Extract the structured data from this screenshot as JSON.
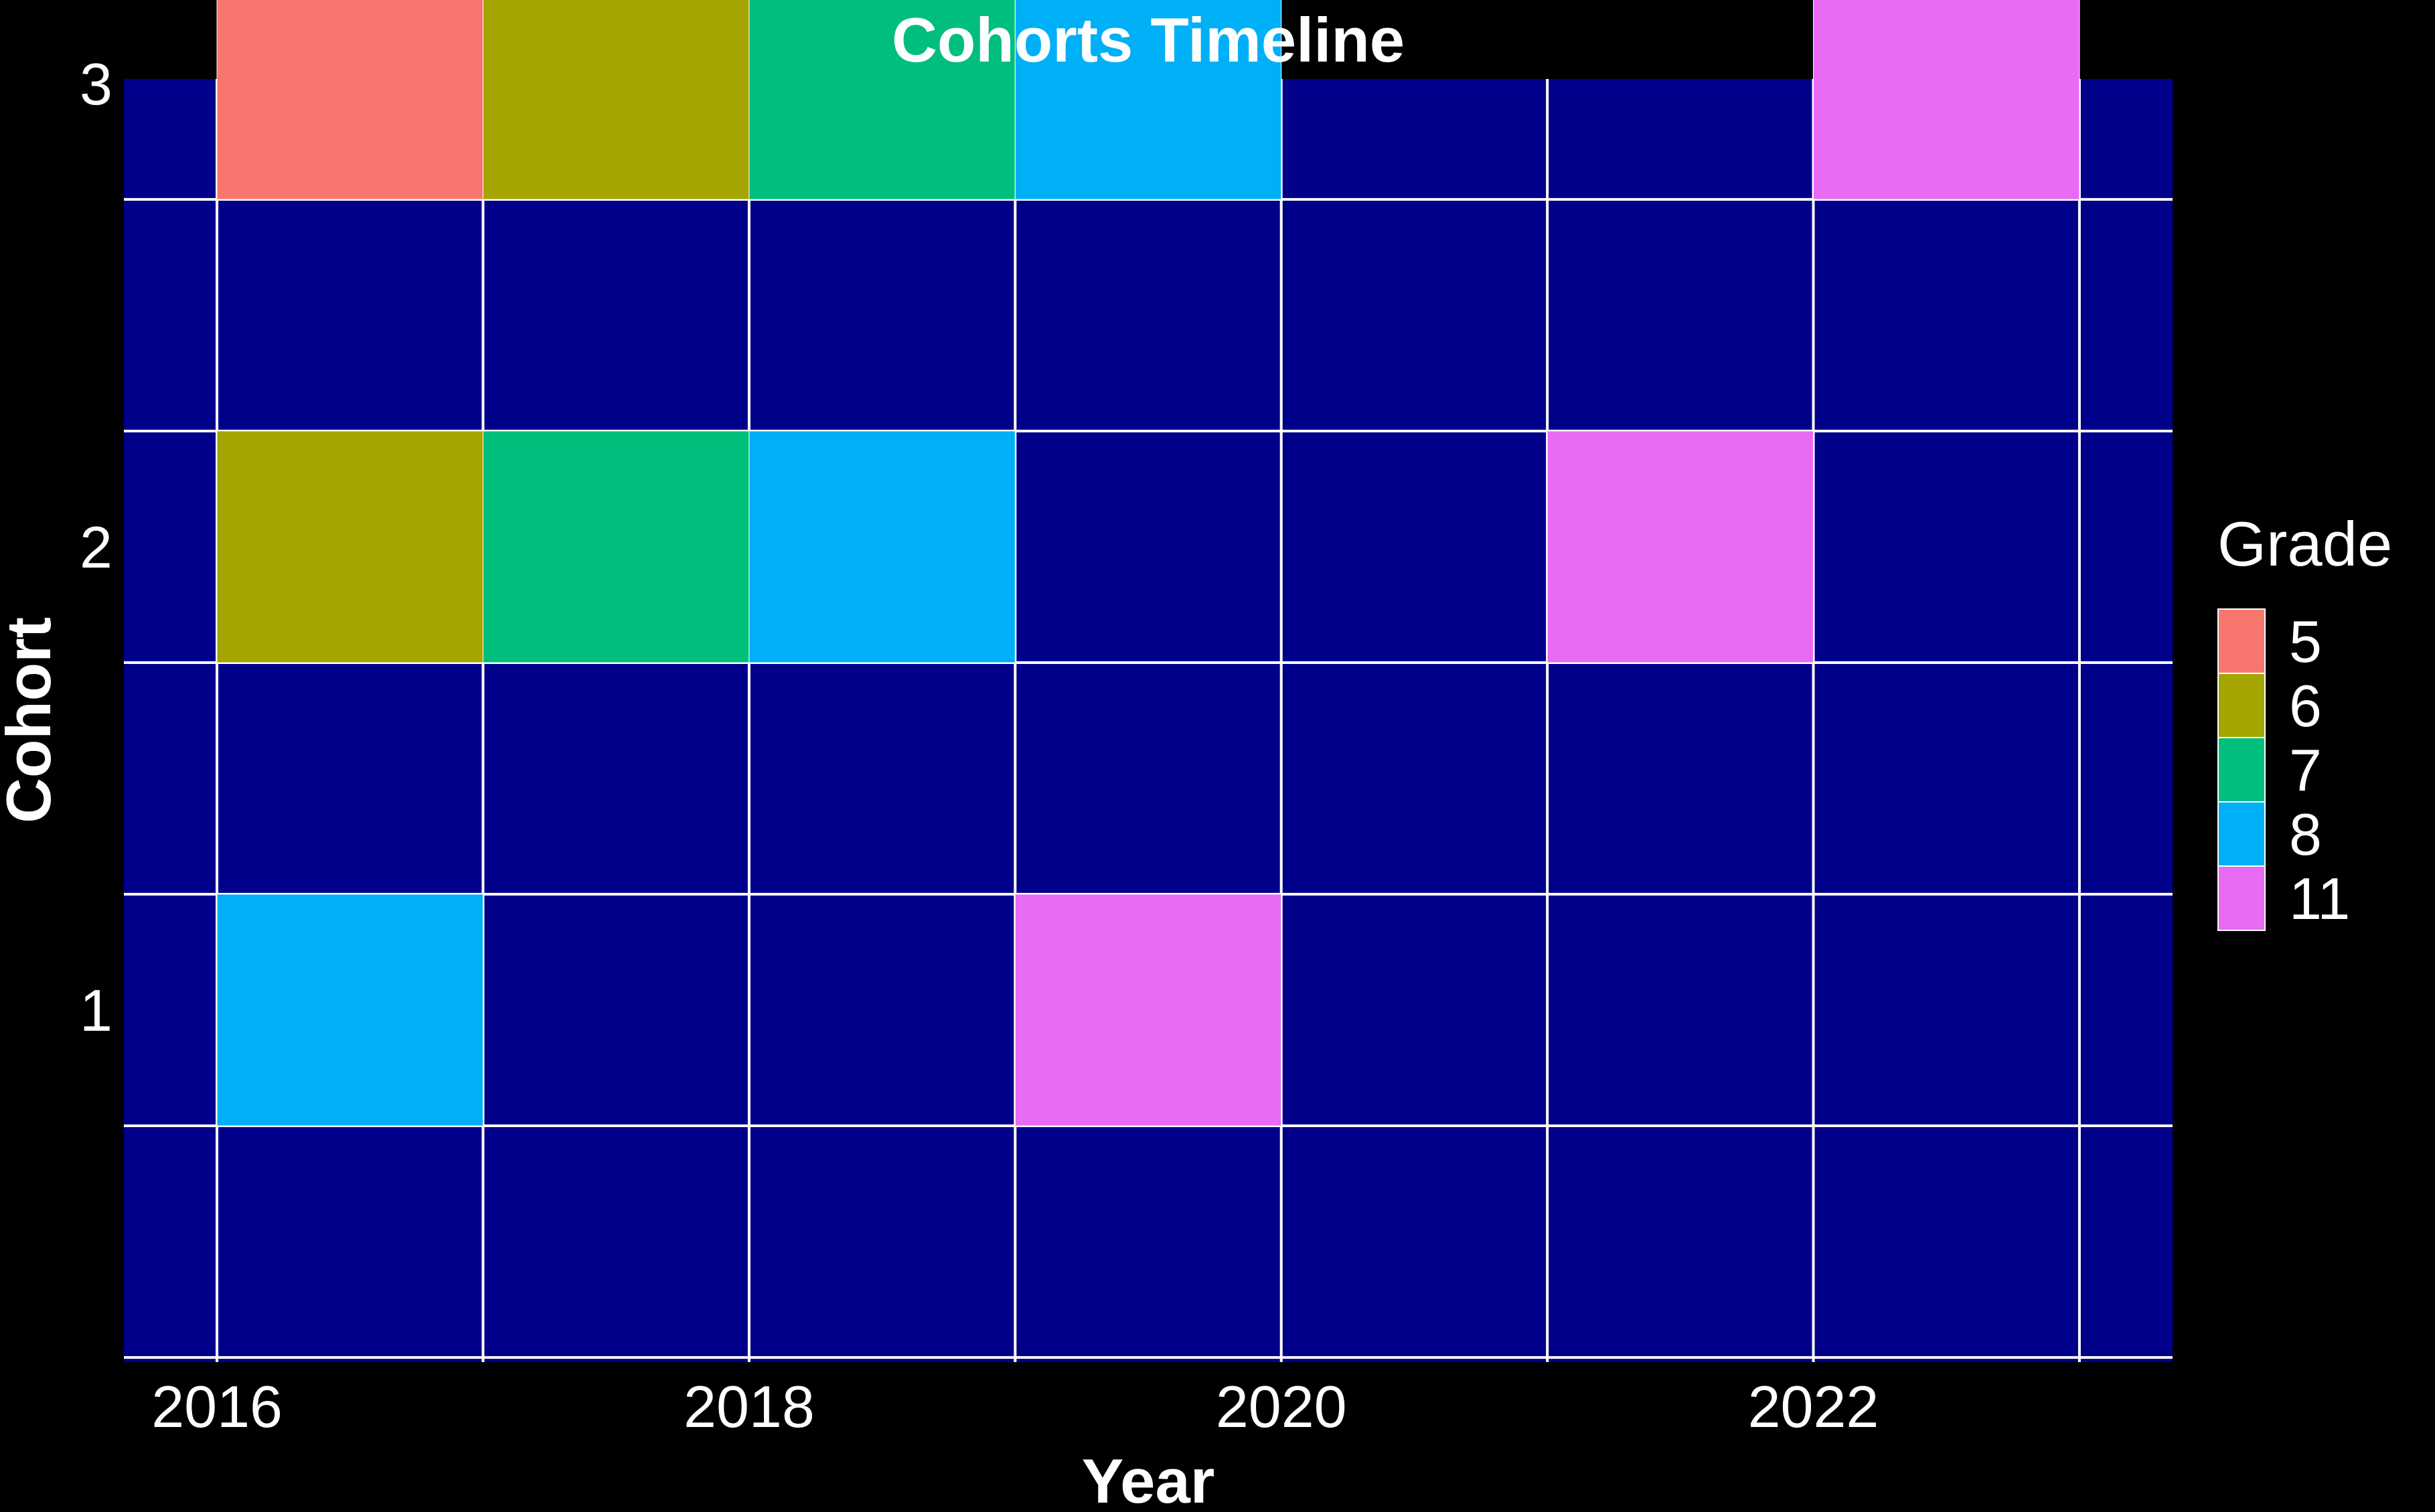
{
  "chart_data": {
    "type": "heatmap",
    "title": "Cohorts Timeline",
    "xlabel": "Year",
    "ylabel": "Cohort",
    "x_ticks": [
      "2016",
      "2018",
      "2020",
      "2022"
    ],
    "y_ticks": [
      "1",
      "2",
      "3"
    ],
    "xlim": [
      2015.65,
      2023.35
    ],
    "ylim": [
      0.49,
      3.26
    ],
    "grid": true,
    "legend": {
      "title": "Grade",
      "position": "right",
      "entries": [
        {
          "label": "5",
          "color": "#F8766D"
        },
        {
          "label": "6",
          "color": "#A3A500"
        },
        {
          "label": "7",
          "color": "#00BF7D"
        },
        {
          "label": "8",
          "color": "#00B0F6"
        },
        {
          "label": "11",
          "color": "#E76BF3"
        }
      ]
    },
    "cells": [
      {
        "cohort": 3,
        "year_start": 2016,
        "year_end": 2017,
        "grade": "5"
      },
      {
        "cohort": 3,
        "year_start": 2017,
        "year_end": 2018,
        "grade": "6"
      },
      {
        "cohort": 3,
        "year_start": 2018,
        "year_end": 2019,
        "grade": "7"
      },
      {
        "cohort": 3,
        "year_start": 2019,
        "year_end": 2020,
        "grade": "8"
      },
      {
        "cohort": 3,
        "year_start": 2022,
        "year_end": 2023,
        "grade": "11"
      },
      {
        "cohort": 2,
        "year_start": 2016,
        "year_end": 2017,
        "grade": "6"
      },
      {
        "cohort": 2,
        "year_start": 2017,
        "year_end": 2018,
        "grade": "7"
      },
      {
        "cohort": 2,
        "year_start": 2018,
        "year_end": 2019,
        "grade": "8"
      },
      {
        "cohort": 2,
        "year_start": 2021,
        "year_end": 2022,
        "grade": "11"
      },
      {
        "cohort": 1,
        "year_start": 2016,
        "year_end": 2017,
        "grade": "8"
      },
      {
        "cohort": 1,
        "year_start": 2019,
        "year_end": 2020,
        "grade": "11"
      }
    ],
    "panel_background": "#00008B",
    "plot_background": "#000000",
    "grid_color": "#ffffff"
  }
}
